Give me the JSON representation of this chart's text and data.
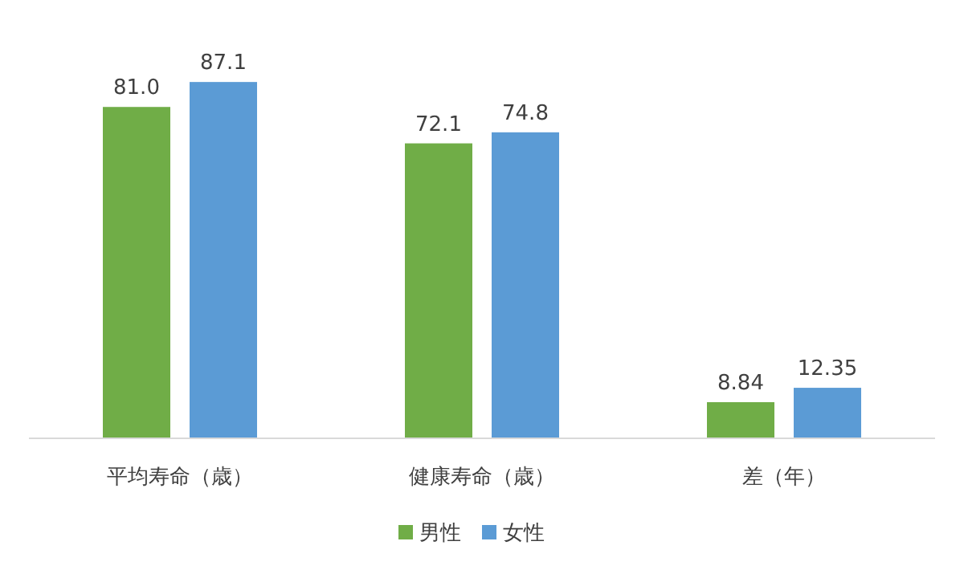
{
  "chart_data": {
    "type": "bar",
    "categories": [
      "平均寿命（歳）",
      "健康寿命（歳）",
      "差（年）"
    ],
    "series": [
      {
        "name": "男性",
        "color": "#70ad47",
        "values": [
          81.0,
          72.1,
          8.84
        ],
        "value_labels": [
          "81.0",
          "72.1",
          "8.84"
        ]
      },
      {
        "name": "女性",
        "color": "#5b9bd5",
        "values": [
          87.1,
          74.8,
          12.35
        ],
        "value_labels": [
          "87.1",
          "74.8",
          "12.35"
        ]
      }
    ],
    "legend": "bottom"
  }
}
